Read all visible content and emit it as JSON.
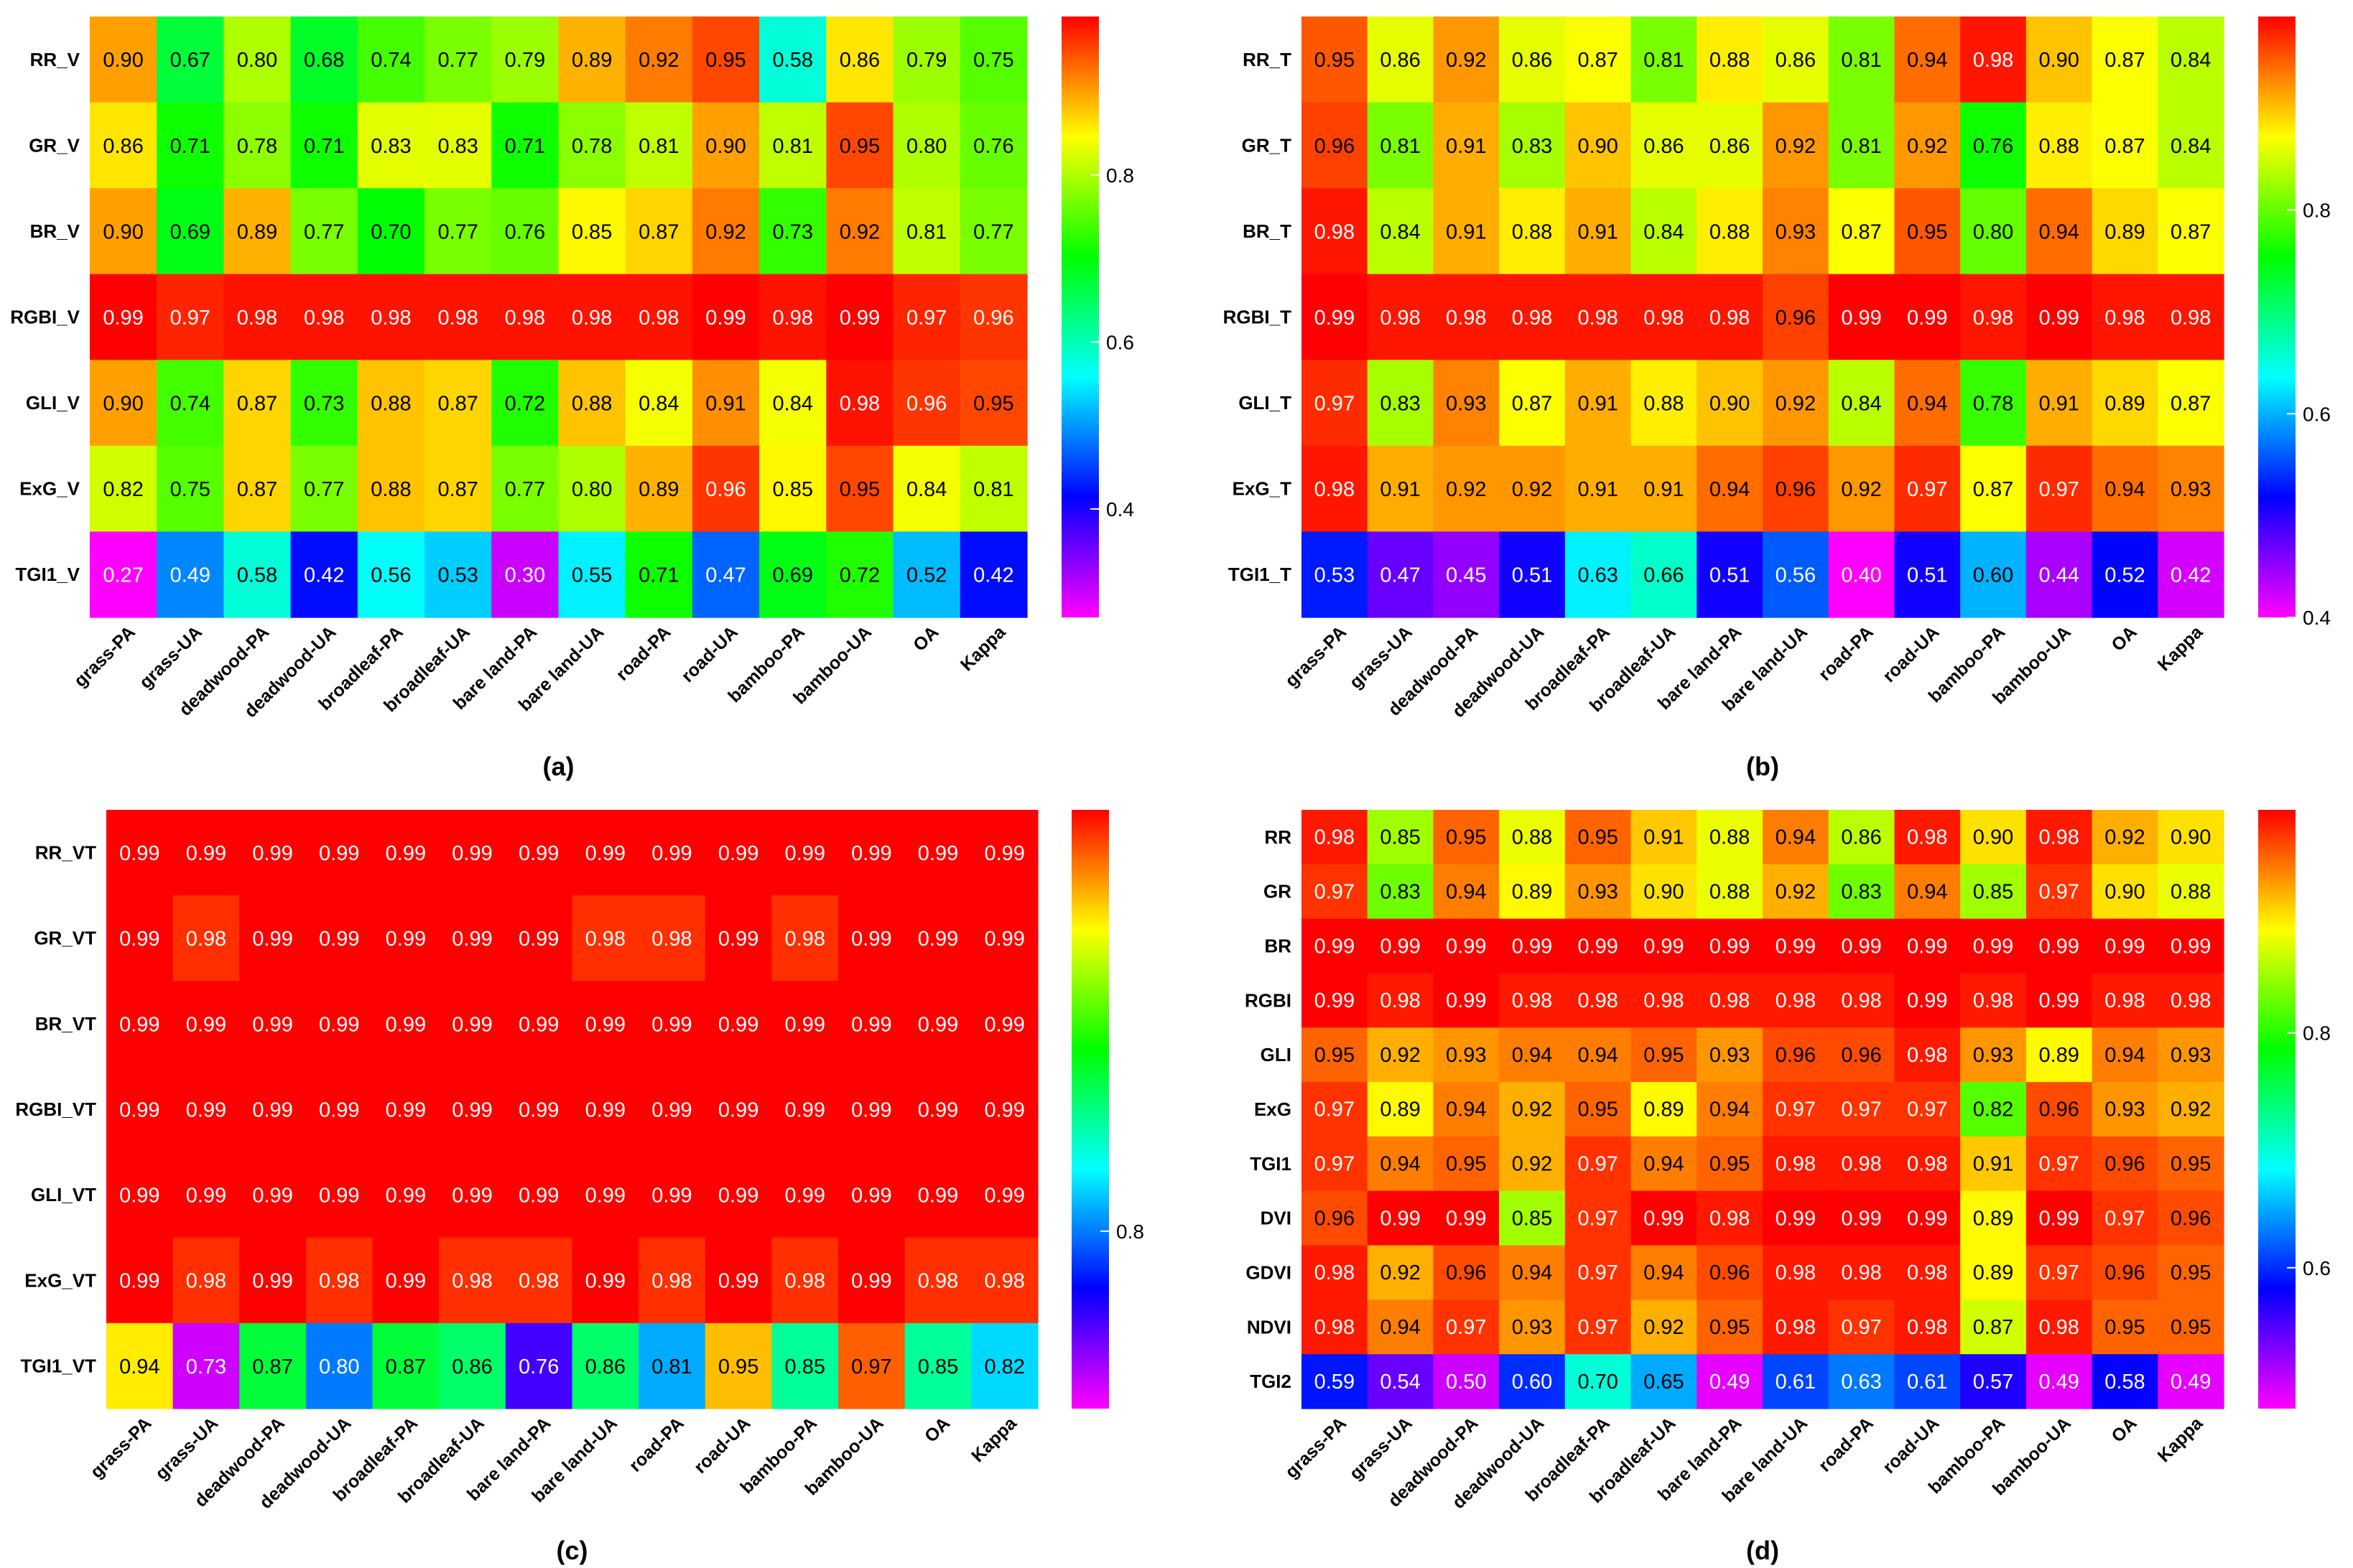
{
  "chart_data": [
    {
      "type": "heatmap",
      "caption": "(a)",
      "rows": [
        "RR_V",
        "GR_V",
        "BR_V",
        "RGBI_V",
        "GLI_V",
        "ExG_V",
        "TGI1_V"
      ],
      "columns": [
        "grass-PA",
        "grass-UA",
        "deadwood-PA",
        "deadwood-UA",
        "broadleaf-PA",
        "broadleaf-UA",
        "bare land-PA",
        "bare land-UA",
        "road-PA",
        "road-UA",
        "bamboo-PA",
        "bamboo-UA",
        "OA",
        "Kappa"
      ],
      "values": [
        [
          "0.90",
          "0.67",
          "0.80",
          "0.68",
          "0.74",
          "0.77",
          "0.79",
          "0.89",
          "0.92",
          "0.95",
          "0.58",
          "0.86",
          "0.79",
          "0.75"
        ],
        [
          "0.86",
          "0.71",
          "0.78",
          "0.71",
          "0.83",
          "0.83",
          "0.71",
          "0.78",
          "0.81",
          "0.90",
          "0.81",
          "0.95",
          "0.80",
          "0.76"
        ],
        [
          "0.90",
          "0.69",
          "0.89",
          "0.77",
          "0.70",
          "0.77",
          "0.76",
          "0.85",
          "0.87",
          "0.92",
          "0.73",
          "0.92",
          "0.81",
          "0.77"
        ],
        [
          "0.99",
          "0.97",
          "0.98",
          "0.98",
          "0.98",
          "0.98",
          "0.98",
          "0.98",
          "0.98",
          "0.99",
          "0.98",
          "0.99",
          "0.97",
          "0.96"
        ],
        [
          "0.90",
          "0.74",
          "0.87",
          "0.73",
          "0.88",
          "0.87",
          "0.72",
          "0.88",
          "0.84",
          "0.91",
          "0.84",
          "0.98",
          "0.96",
          "0.95"
        ],
        [
          "0.82",
          "0.75",
          "0.87",
          "0.77",
          "0.88",
          "0.87",
          "0.77",
          "0.80",
          "0.89",
          "0.96",
          "0.85",
          "0.95",
          "0.84",
          "0.81"
        ],
        [
          "0.27",
          "0.49",
          "0.58",
          "0.42",
          "0.56",
          "0.53",
          "0.30",
          "0.55",
          "0.71",
          "0.47",
          "0.69",
          "0.72",
          "0.52",
          "0.42"
        ]
      ],
      "color_range": [
        0.27,
        0.99
      ],
      "colorbar_ticks": [
        "0.4",
        "0.6",
        "0.8"
      ]
    },
    {
      "type": "heatmap",
      "caption": "(b)",
      "rows": [
        "RR_T",
        "GR_T",
        "BR_T",
        "RGBI_T",
        "GLI_T",
        "ExG_T",
        "TGI1_T"
      ],
      "columns": [
        "grass-PA",
        "grass-UA",
        "deadwood-PA",
        "deadwood-UA",
        "broadleaf-PA",
        "broadleaf-UA",
        "bare land-PA",
        "bare land-UA",
        "road-PA",
        "road-UA",
        "bamboo-PA",
        "bamboo-UA",
        "OA",
        "Kappa"
      ],
      "values": [
        [
          "0.95",
          "0.86",
          "0.92",
          "0.86",
          "0.87",
          "0.81",
          "0.88",
          "0.86",
          "0.81",
          "0.94",
          "0.98",
          "0.90",
          "0.87",
          "0.84"
        ],
        [
          "0.96",
          "0.81",
          "0.91",
          "0.83",
          "0.90",
          "0.86",
          "0.86",
          "0.92",
          "0.81",
          "0.92",
          "0.76",
          "0.88",
          "0.87",
          "0.84"
        ],
        [
          "0.98",
          "0.84",
          "0.91",
          "0.88",
          "0.91",
          "0.84",
          "0.88",
          "0.93",
          "0.87",
          "0.95",
          "0.80",
          "0.94",
          "0.89",
          "0.87"
        ],
        [
          "0.99",
          "0.98",
          "0.98",
          "0.98",
          "0.98",
          "0.98",
          "0.98",
          "0.96",
          "0.99",
          "0.99",
          "0.98",
          "0.99",
          "0.98",
          "0.98"
        ],
        [
          "0.97",
          "0.83",
          "0.93",
          "0.87",
          "0.91",
          "0.88",
          "0.90",
          "0.92",
          "0.84",
          "0.94",
          "0.78",
          "0.91",
          "0.89",
          "0.87"
        ],
        [
          "0.98",
          "0.91",
          "0.92",
          "0.92",
          "0.91",
          "0.91",
          "0.94",
          "0.96",
          "0.92",
          "0.97",
          "0.87",
          "0.97",
          "0.94",
          "0.93"
        ],
        [
          "0.53",
          "0.47",
          "0.45",
          "0.51",
          "0.63",
          "0.66",
          "0.51",
          "0.56",
          "0.40",
          "0.51",
          "0.60",
          "0.44",
          "0.52",
          "0.42"
        ]
      ],
      "color_range": [
        0.4,
        0.99
      ],
      "colorbar_ticks": [
        "0.4",
        "0.6",
        "0.8"
      ]
    },
    {
      "type": "heatmap",
      "caption": "(c)",
      "rows": [
        "RR_VT",
        "GR_VT",
        "BR_VT",
        "RGBI_VT",
        "GLI_VT",
        "ExG_VT",
        "TGI1_VT"
      ],
      "columns": [
        "grass-PA",
        "grass-UA",
        "deadwood-PA",
        "deadwood-UA",
        "broadleaf-PA",
        "broadleaf-UA",
        "bare land-PA",
        "bare land-UA",
        "road-PA",
        "road-UA",
        "bamboo-PA",
        "bamboo-UA",
        "OA",
        "Kappa"
      ],
      "values": [
        [
          "0.99",
          "0.99",
          "0.99",
          "0.99",
          "0.99",
          "0.99",
          "0.99",
          "0.99",
          "0.99",
          "0.99",
          "0.99",
          "0.99",
          "0.99",
          "0.99"
        ],
        [
          "0.99",
          "0.98",
          "0.99",
          "0.99",
          "0.99",
          "0.99",
          "0.99",
          "0.98",
          "0.98",
          "0.99",
          "0.98",
          "0.99",
          "0.99",
          "0.99"
        ],
        [
          "0.99",
          "0.99",
          "0.99",
          "0.99",
          "0.99",
          "0.99",
          "0.99",
          "0.99",
          "0.99",
          "0.99",
          "0.99",
          "0.99",
          "0.99",
          "0.99"
        ],
        [
          "0.99",
          "0.99",
          "0.99",
          "0.99",
          "0.99",
          "0.99",
          "0.99",
          "0.99",
          "0.99",
          "0.99",
          "0.99",
          "0.99",
          "0.99",
          "0.99"
        ],
        [
          "0.99",
          "0.99",
          "0.99",
          "0.99",
          "0.99",
          "0.99",
          "0.99",
          "0.99",
          "0.99",
          "0.99",
          "0.99",
          "0.99",
          "0.99",
          "0.99"
        ],
        [
          "0.99",
          "0.98",
          "0.99",
          "0.98",
          "0.99",
          "0.98",
          "0.98",
          "0.99",
          "0.98",
          "0.99",
          "0.98",
          "0.99",
          "0.98",
          "0.98"
        ],
        [
          "0.94",
          "0.73",
          "0.87",
          "0.80",
          "0.87",
          "0.86",
          "0.76",
          "0.86",
          "0.81",
          "0.95",
          "0.85",
          "0.97",
          "0.85",
          "0.82"
        ]
      ],
      "color_range": [
        0.72,
        0.99
      ],
      "colorbar_ticks": [
        "0.8"
      ]
    },
    {
      "type": "heatmap",
      "caption": "(d)",
      "rows": [
        "RR",
        "GR",
        "BR",
        "RGBI",
        "GLI",
        "ExG",
        "TGI1",
        "DVI",
        "GDVI",
        "NDVI",
        "TGI2"
      ],
      "columns": [
        "grass-PA",
        "grass-UA",
        "deadwood-PA",
        "deadwood-UA",
        "broadleaf-PA",
        "broadleaf-UA",
        "bare land-PA",
        "bare land-UA",
        "road-PA",
        "road-UA",
        "bamboo-PA",
        "bamboo-UA",
        "OA",
        "Kappa"
      ],
      "values": [
        [
          "0.98",
          "0.85",
          "0.95",
          "0.88",
          "0.95",
          "0.91",
          "0.88",
          "0.94",
          "0.86",
          "0.98",
          "0.90",
          "0.98",
          "0.92",
          "0.90"
        ],
        [
          "0.97",
          "0.83",
          "0.94",
          "0.89",
          "0.93",
          "0.90",
          "0.88",
          "0.92",
          "0.83",
          "0.94",
          "0.85",
          "0.97",
          "0.90",
          "0.88"
        ],
        [
          "0.99",
          "0.99",
          "0.99",
          "0.99",
          "0.99",
          "0.99",
          "0.99",
          "0.99",
          "0.99",
          "0.99",
          "0.99",
          "0.99",
          "0.99",
          "0.99"
        ],
        [
          "0.99",
          "0.98",
          "0.99",
          "0.98",
          "0.98",
          "0.98",
          "0.98",
          "0.98",
          "0.98",
          "0.99",
          "0.98",
          "0.99",
          "0.98",
          "0.98"
        ],
        [
          "0.95",
          "0.92",
          "0.93",
          "0.94",
          "0.94",
          "0.95",
          "0.93",
          "0.96",
          "0.96",
          "0.98",
          "0.93",
          "0.89",
          "0.94",
          "0.93"
        ],
        [
          "0.97",
          "0.89",
          "0.94",
          "0.92",
          "0.95",
          "0.89",
          "0.94",
          "0.97",
          "0.97",
          "0.97",
          "0.82",
          "0.96",
          "0.93",
          "0.92"
        ],
        [
          "0.97",
          "0.94",
          "0.95",
          "0.92",
          "0.97",
          "0.94",
          "0.95",
          "0.98",
          "0.98",
          "0.98",
          "0.91",
          "0.97",
          "0.96",
          "0.95"
        ],
        [
          "0.96",
          "0.99",
          "0.99",
          "0.85",
          "0.97",
          "0.99",
          "0.98",
          "0.99",
          "0.99",
          "0.99",
          "0.89",
          "0.99",
          "0.97",
          "0.96"
        ],
        [
          "0.98",
          "0.92",
          "0.96",
          "0.94",
          "0.97",
          "0.94",
          "0.96",
          "0.98",
          "0.98",
          "0.98",
          "0.89",
          "0.97",
          "0.96",
          "0.95"
        ],
        [
          "0.98",
          "0.94",
          "0.97",
          "0.93",
          "0.97",
          "0.92",
          "0.95",
          "0.98",
          "0.97",
          "0.98",
          "0.87",
          "0.98",
          "0.95",
          "0.95"
        ],
        [
          "0.59",
          "0.54",
          "0.50",
          "0.60",
          "0.70",
          "0.65",
          "0.49",
          "0.61",
          "0.63",
          "0.61",
          "0.57",
          "0.49",
          "0.58",
          "0.49"
        ]
      ],
      "color_range": [
        0.48,
        0.99
      ],
      "colorbar_ticks": [
        "0.6",
        "0.8"
      ]
    }
  ]
}
